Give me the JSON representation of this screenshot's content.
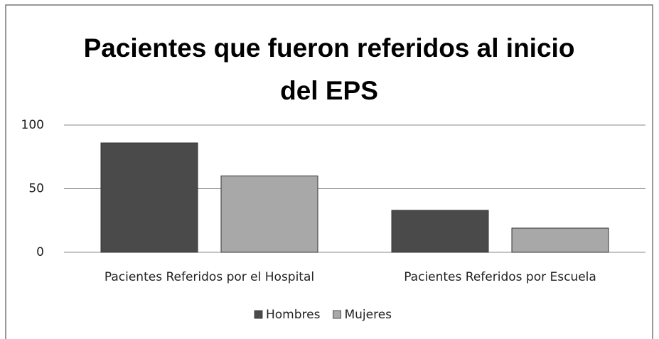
{
  "chart_data": {
    "type": "bar",
    "title": "Pacientes que fueron referidos al inicio del EPS",
    "categories": [
      "Pacientes Referidos por el Hospital",
      "Pacientes Referidos por Escuela"
    ],
    "series": [
      {
        "name": "Hombres",
        "color": "#4a4a4a",
        "values": [
          86,
          33
        ]
      },
      {
        "name": "Mujeres",
        "color": "#a8a8a8",
        "values": [
          60,
          19
        ]
      }
    ],
    "ylim": [
      0,
      100
    ],
    "yticks": [
      0,
      50,
      100
    ],
    "grid": true,
    "legend": "bottom"
  }
}
